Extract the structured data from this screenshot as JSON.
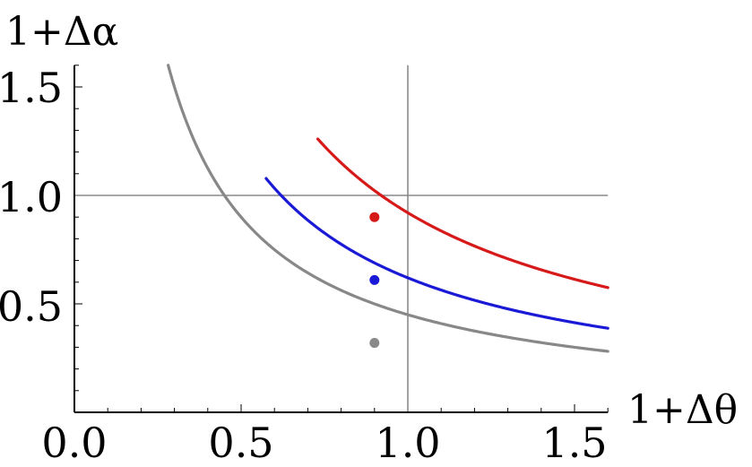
{
  "chart_data": {
    "type": "line",
    "xlabel": "1+Δθ",
    "ylabel": "1+Δα",
    "xlim": [
      0,
      1.6
    ],
    "ylim": [
      0,
      1.6
    ],
    "x_ticks": [
      "0.0",
      "0.5",
      "1.0",
      "1.5"
    ],
    "y_ticks": [
      "0.5",
      "1.0",
      "1.5"
    ],
    "reference_lines": [
      {
        "axis": "x",
        "value": 1.0
      },
      {
        "axis": "y",
        "value": 1.0
      }
    ],
    "series": [
      {
        "color": "#888888",
        "curve": "y = k / x",
        "k": 0.45,
        "x_start": 0.1,
        "x_end": 1.6
      },
      {
        "color": "#1a1ad6",
        "curve": "y = k / x",
        "k": 0.62,
        "x_start": 0.575,
        "x_end": 1.6
      },
      {
        "color": "#d61a1a",
        "curve": "y = k / x",
        "k": 0.92,
        "x_start": 0.73,
        "x_end": 1.6
      }
    ],
    "points": [
      {
        "x": 0.9,
        "y": 0.9,
        "color": "#d61a1a"
      },
      {
        "x": 0.9,
        "y": 0.61,
        "color": "#1a1ad6"
      },
      {
        "x": 0.9,
        "y": 0.32,
        "color": "#888888"
      }
    ]
  }
}
